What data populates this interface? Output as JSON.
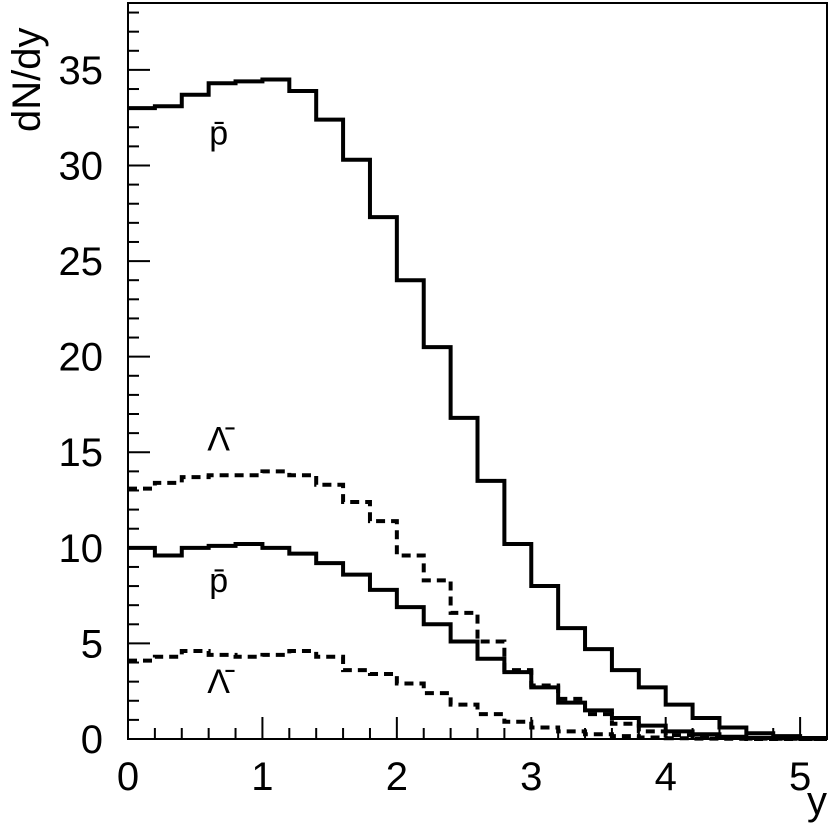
{
  "chart_data": {
    "type": "line",
    "step": true,
    "xlabel": "y",
    "ylabel": "dN/dy",
    "xlim": [
      0,
      5.2
    ],
    "ylim": [
      0,
      38.5
    ],
    "x_ticks": [
      0,
      1,
      2,
      3,
      4,
      5
    ],
    "y_ticks": [
      0,
      5,
      10,
      15,
      20,
      25,
      30,
      35
    ],
    "grid": false,
    "bin_width": 0.2,
    "series": [
      {
        "name": "p̄",
        "style": "solid",
        "label_anchor": [
          0.6,
          31.1
        ],
        "values": [
          33.0,
          33.1,
          33.7,
          34.3,
          34.4,
          34.5,
          33.9,
          32.4,
          30.3,
          27.3,
          24.0,
          20.5,
          16.8,
          13.5,
          10.2,
          8.0,
          5.8,
          4.7,
          3.6,
          2.7,
          1.8,
          1.1,
          0.6,
          0.3,
          0.15,
          0.05
        ]
      },
      {
        "name": "Λ̄",
        "style": "dashed",
        "label_anchor": [
          0.6,
          15.1
        ],
        "values": [
          13.1,
          13.4,
          13.7,
          13.8,
          13.8,
          14.0,
          13.8,
          13.3,
          12.4,
          11.4,
          9.6,
          8.3,
          6.6,
          5.1,
          3.6,
          2.8,
          2.1,
          1.3,
          0.8,
          0.4,
          0.2,
          0.1,
          0.05,
          0.02,
          0.01,
          0.0
        ]
      },
      {
        "name": "p̄",
        "style": "solid",
        "label_anchor": [
          0.6,
          7.7
        ],
        "values": [
          10.0,
          9.6,
          10.0,
          10.1,
          10.2,
          10.0,
          9.7,
          9.2,
          8.6,
          7.8,
          6.9,
          6.0,
          5.1,
          4.2,
          3.5,
          2.7,
          1.9,
          1.5,
          1.1,
          0.7,
          0.4,
          0.25,
          0.12,
          0.06,
          0.03,
          0.01
        ]
      },
      {
        "name": "Λ̄",
        "style": "dashed",
        "label_anchor": [
          0.6,
          2.4
        ],
        "values": [
          4.1,
          4.3,
          4.6,
          4.4,
          4.3,
          4.4,
          4.6,
          4.3,
          3.6,
          3.4,
          2.9,
          2.4,
          1.8,
          1.3,
          0.9,
          0.6,
          0.4,
          0.25,
          0.15,
          0.08,
          0.04,
          0.02,
          0.01,
          0.0,
          0.0,
          0.0
        ]
      }
    ]
  }
}
